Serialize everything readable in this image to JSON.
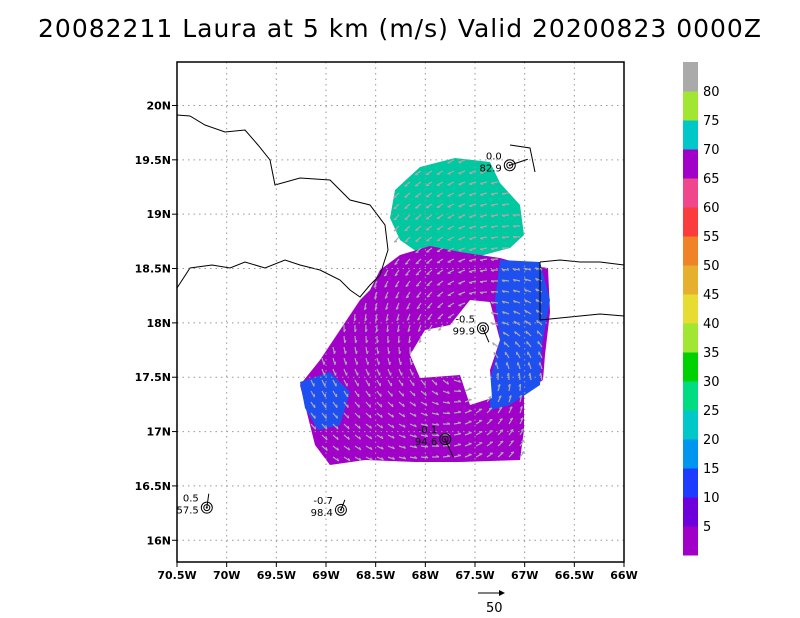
{
  "title": "20082211 Laura at 5 km (m/s) Valid 20200823 0000Z",
  "map": {
    "lon_ticks": [
      "70.5W",
      "70W",
      "69.5W",
      "69W",
      "68.5W",
      "68W",
      "67.5W",
      "67W",
      "66.5W",
      "66W"
    ],
    "lat_ticks": [
      "20N",
      "19.5N",
      "19N",
      "18.5N",
      "18N",
      "17.5N",
      "17N",
      "16.5N",
      "16N"
    ],
    "lon_range": [
      -70.5,
      -66.0
    ],
    "lat_range": [
      15.8,
      20.4
    ],
    "grid": true
  },
  "colorbar": {
    "labels": [
      "5",
      "10",
      "15",
      "20",
      "25",
      "30",
      "35",
      "40",
      "45",
      "50",
      "55",
      "60",
      "65",
      "70",
      "75",
      "80"
    ],
    "colors": [
      "#a000c8",
      "#6e00dc",
      "#1e3cff",
      "#0096f0",
      "#00c8c8",
      "#00dc82",
      "#00d200",
      "#a0e632",
      "#e6dc32",
      "#e6af2d",
      "#f08228",
      "#fa3c3c",
      "#f0468c",
      "#a000c8",
      "#00c8c8",
      "#a0e632",
      "#aaaaaa"
    ]
  },
  "observations": [
    {
      "lon": -67.15,
      "lat": 19.45,
      "top": "0.0",
      "bottom": "82.9"
    },
    {
      "lon": -67.42,
      "lat": 17.95,
      "top": "-0.5",
      "bottom": "99.9"
    },
    {
      "lon": -67.8,
      "lat": 16.93,
      "top": "-0.1",
      "bottom": "94.6"
    },
    {
      "lon": -70.2,
      "lat": 16.3,
      "top": "0.5",
      "bottom": "57.5"
    },
    {
      "lon": -68.85,
      "lat": 16.28,
      "top": "-0.7",
      "bottom": "98.4"
    }
  ],
  "wind_areas": {
    "north_color": "#00c8a0",
    "south_color": "#a000c8",
    "east_color": "#1e50f0",
    "vector_color": "#aaaaaa"
  },
  "reference_vector": {
    "label": "50"
  }
}
